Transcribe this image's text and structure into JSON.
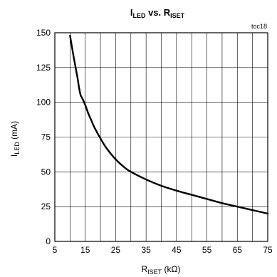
{
  "chart_data": {
    "type": "line",
    "title_main": "I",
    "title_sub": "LED",
    "title_mid": " vs. R",
    "title_sub2": "ISET",
    "corner_note": "toc18",
    "ylabel_main": "I",
    "ylabel_sub": "LED",
    "ylabel_unit": " (mA)",
    "xlabel_main": "R",
    "xlabel_sub": "ISET",
    "xlabel_unit": " (kΩ)",
    "xlim": [
      5,
      75
    ],
    "ylim": [
      0,
      150
    ],
    "xticks": [
      5,
      15,
      25,
      35,
      45,
      55,
      65,
      75
    ],
    "yticks": [
      0,
      25,
      50,
      75,
      100,
      125,
      150
    ],
    "xgrid": [
      5,
      10,
      15,
      20,
      25,
      30,
      35,
      40,
      45,
      50,
      55,
      60,
      65,
      70,
      75
    ],
    "ygrid": [
      0,
      25,
      50,
      75,
      100,
      125,
      150
    ],
    "grid": true,
    "line_color": "#000000",
    "series": [
      {
        "x": [
          10,
          11,
          12,
          12.5,
          13,
          13.5,
          14,
          15,
          16,
          17,
          18,
          20,
          22,
          25,
          28,
          30,
          35,
          40,
          45,
          50,
          55,
          60,
          65,
          70,
          75
        ],
        "y": [
          148,
          135,
          123,
          117,
          110,
          105,
          103,
          98,
          92,
          87,
          82,
          74,
          67,
          59,
          53,
          50,
          44.5,
          40,
          36.5,
          33.5,
          30.5,
          27.5,
          25,
          22.5,
          20
        ]
      }
    ]
  }
}
